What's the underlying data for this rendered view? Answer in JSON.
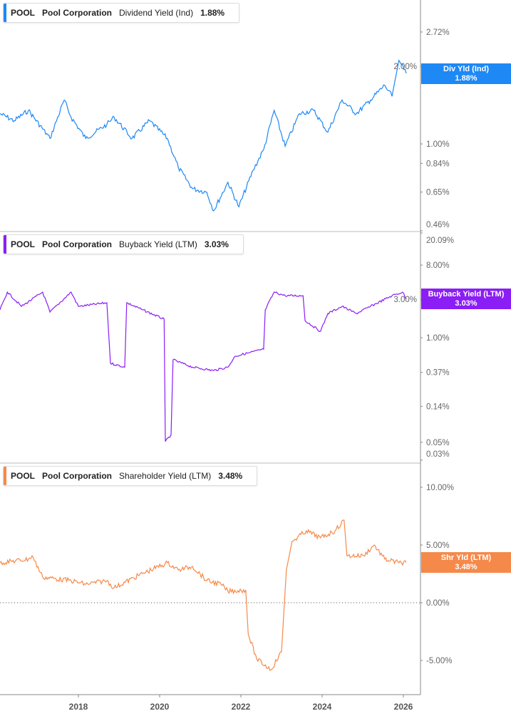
{
  "chart_data": [
    {
      "type": "line",
      "panel": "top",
      "ticker": "POOL",
      "company": "Pool Corporation",
      "metric": "Dividend Yield (Ind)",
      "current": "1.88%",
      "badge_label": "Div Yld (Ind)",
      "color": "#1e88f5",
      "scale": "log",
      "y_ticks": [
        "2.72%",
        "2.00%",
        "1.00%",
        "0.84%",
        "0.65%",
        "0.46%"
      ],
      "y_tick_values": [
        2.72,
        2.0,
        1.0,
        0.84,
        0.65,
        0.46
      ],
      "x": [
        2016.07,
        2016.42,
        2016.77,
        2017.3,
        2017.65,
        2017.82,
        2018.18,
        2018.7,
        2018.88,
        2019.32,
        2019.75,
        2020.19,
        2020.46,
        2020.81,
        2021.16,
        2021.33,
        2021.68,
        2021.95,
        2022.3,
        2022.56,
        2022.82,
        2023.09,
        2023.44,
        2023.79,
        2024.14,
        2024.49,
        2024.84,
        2025.19,
        2025.54,
        2025.72,
        2025.89,
        2026.07
      ],
      "y": [
        1.31,
        1.23,
        1.35,
        1.05,
        1.48,
        1.27,
        1.05,
        1.19,
        1.27,
        1.05,
        1.23,
        1.05,
        0.81,
        0.67,
        0.65,
        0.55,
        0.71,
        0.57,
        0.79,
        0.95,
        1.35,
        0.98,
        1.31,
        1.35,
        1.11,
        1.48,
        1.31,
        1.48,
        1.69,
        1.53,
        2.11,
        1.88
      ]
    },
    {
      "type": "line",
      "panel": "middle",
      "ticker": "POOL",
      "company": "Pool Corporation",
      "metric": "Buyback Yield (LTM)",
      "current": "3.03%",
      "badge_label": "Buyback Yield (LTM)",
      "color": "#8a1ef5",
      "scale": "log",
      "y_ticks": [
        "20.09%",
        "8.00%",
        "3.00%",
        "1.00%",
        "0.37%",
        "0.14%",
        "0.05%",
        "0.03%"
      ],
      "y_tick_values": [
        20.09,
        8.0,
        3.0,
        1.0,
        0.37,
        0.14,
        0.05,
        0.03
      ],
      "x": [
        2016.07,
        2016.25,
        2016.6,
        2017.12,
        2017.3,
        2017.82,
        2018.0,
        2018.7,
        2018.79,
        2019.14,
        2019.19,
        2019.58,
        2020.11,
        2020.14,
        2020.28,
        2020.33,
        2020.81,
        2021.33,
        2021.68,
        2021.86,
        2022.21,
        2022.56,
        2022.6,
        2022.82,
        2023.09,
        2023.53,
        2023.58,
        2023.96,
        2024.14,
        2024.49,
        2024.84,
        2025.19,
        2025.72,
        2025.98,
        2026.07
      ],
      "y": [
        2.22,
        3.69,
        2.45,
        3.69,
        2.08,
        3.69,
        2.45,
        2.72,
        0.48,
        0.43,
        2.72,
        2.22,
        1.7,
        0.051,
        0.062,
        0.53,
        0.43,
        0.39,
        0.43,
        0.59,
        0.65,
        0.72,
        2.22,
        3.69,
        3.33,
        3.33,
        1.63,
        1.2,
        2.0,
        2.45,
        2.0,
        2.45,
        3.33,
        3.69,
        3.03
      ]
    },
    {
      "type": "line",
      "panel": "bottom",
      "ticker": "POOL",
      "company": "Pool Corporation",
      "metric": "Shareholder Yield (LTM)",
      "current": "3.48%",
      "badge_label": "Shr Yld (LTM)",
      "color": "#f5894a",
      "scale": "linear",
      "y_ticks": [
        "10.00%",
        "5.00%",
        "0.00%",
        "-5.00%"
      ],
      "y_tick_values": [
        10,
        5,
        0,
        -5
      ],
      "x": [
        2016.07,
        2016.77,
        2016.86,
        2017.12,
        2017.82,
        2018.18,
        2018.7,
        2018.88,
        2019.58,
        2020.19,
        2020.46,
        2020.81,
        2021.16,
        2021.51,
        2021.68,
        2022.12,
        2022.18,
        2022.39,
        2022.74,
        2023.0,
        2023.12,
        2023.26,
        2023.61,
        2023.96,
        2024.32,
        2024.54,
        2024.61,
        2025.02,
        2025.28,
        2025.54,
        2025.89,
        2026.07
      ],
      "y": [
        3.46,
        3.77,
        4.07,
        2.22,
        1.91,
        1.6,
        1.91,
        1.3,
        2.53,
        3.46,
        2.84,
        3.15,
        1.91,
        1.6,
        0.99,
        1.11,
        -2.72,
        -4.88,
        -5.8,
        -4.26,
        2.84,
        5.31,
        6.23,
        5.62,
        6.23,
        7.16,
        4.07,
        4.07,
        5.0,
        3.77,
        3.46,
        3.48
      ]
    }
  ],
  "x_axis": {
    "ticks": [
      "2018",
      "2020",
      "2022",
      "2024",
      "2026"
    ],
    "tick_values": [
      2018,
      2020,
      2022,
      2024,
      2026
    ]
  }
}
